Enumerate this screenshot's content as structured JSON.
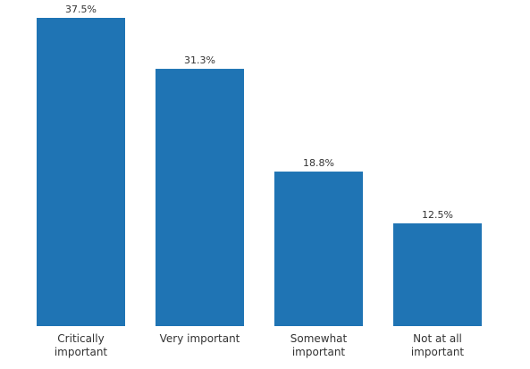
{
  "chart_data": {
    "type": "bar",
    "categories": [
      "Critically important",
      "Very important",
      "Somewhat important",
      "Not at all important"
    ],
    "values": [
      37.5,
      31.3,
      18.8,
      12.5
    ],
    "value_labels": [
      "37.5%",
      "31.3%",
      "18.8%",
      "12.5%"
    ],
    "color": "#1f74b4"
  }
}
